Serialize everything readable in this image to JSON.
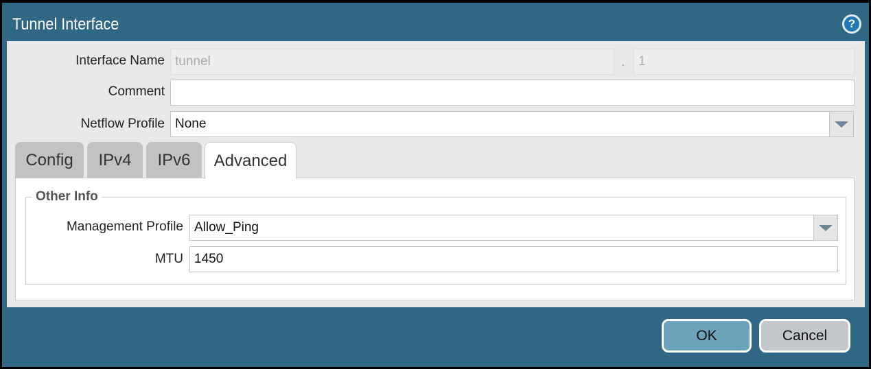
{
  "dialog": {
    "title": "Tunnel Interface",
    "help_icon": "help-icon"
  },
  "form": {
    "interface_name_label": "Interface Name",
    "interface_name_value": "tunnel",
    "separator": ".",
    "interface_suffix_value": "1",
    "comment_label": "Comment",
    "comment_value": "",
    "netflow_label": "Netflow Profile",
    "netflow_value": "None"
  },
  "tabs": [
    {
      "label": "Config"
    },
    {
      "label": "IPv4"
    },
    {
      "label": "IPv6"
    },
    {
      "label": "Advanced",
      "active": true
    }
  ],
  "advanced": {
    "section_title": "Other Info",
    "mgmt_label": "Management Profile",
    "mgmt_value": "Allow_Ping",
    "mtu_label": "MTU",
    "mtu_value": "1450"
  },
  "buttons": {
    "ok": "OK",
    "cancel": "Cancel"
  },
  "colors": {
    "titlebar": "#2f6784",
    "ok_button": "#6aa3ba",
    "cancel_button": "#c4c7cb"
  }
}
